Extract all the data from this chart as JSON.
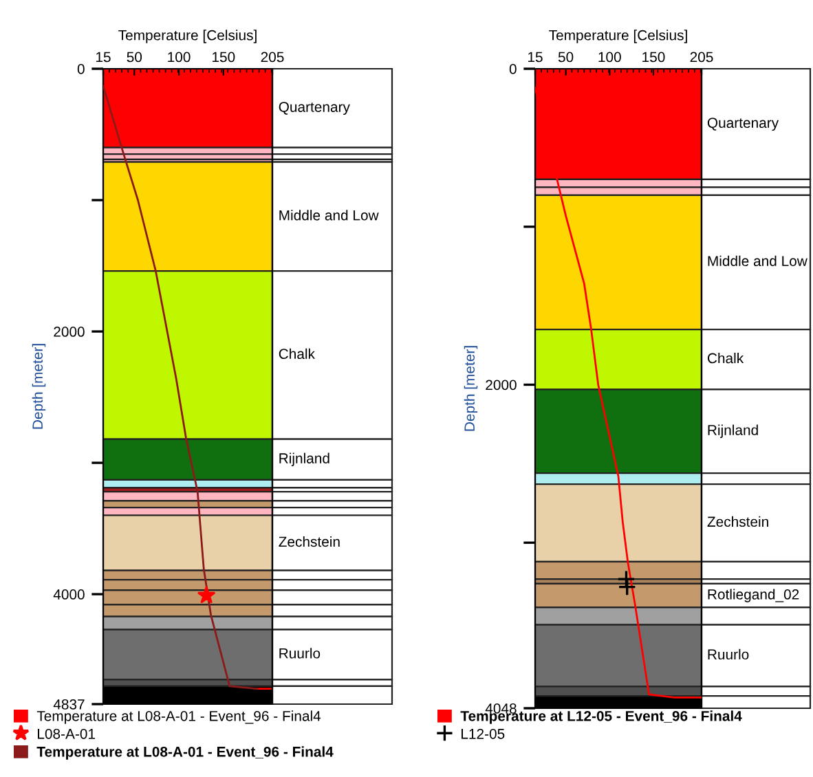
{
  "chart_data": [
    {
      "type": "line",
      "xlabel": "Temperature [Celsius]",
      "ylabel": "Depth [meter]",
      "xlim": [
        15,
        205
      ],
      "xticks": [
        15,
        50,
        100,
        150,
        205
      ],
      "ylim": [
        4837,
        0
      ],
      "yticks": [
        0,
        2000,
        4000,
        4837
      ],
      "legend": "bottom",
      "grid": false,
      "series": [
        {
          "name": "Temperature at L08-A-01 - Event_96 - Final4",
          "color": "#ff0000",
          "x": [
            188,
            203
          ],
          "values": [
            4720,
            4720
          ]
        },
        {
          "name": "L08-A-01",
          "color": "#ff0000",
          "type": "scatter",
          "marker": "star",
          "x": [
            131
          ],
          "values": [
            4010
          ]
        },
        {
          "name": "Temperature at L08-A-01 - Event_96 - Final4",
          "color": "#8b1a1a",
          "x": [
            15,
            38,
            54,
            74,
            97,
            108,
            121,
            128,
            136,
            157,
            188
          ],
          "values": [
            130,
            650,
            1000,
            1540,
            2360,
            2810,
            3220,
            3810,
            4160,
            4700,
            4720
          ]
        }
      ],
      "bands": [
        {
          "axis": "y",
          "from": 0,
          "to": 600,
          "color": "#ff0000",
          "label": "Quartenary"
        },
        {
          "axis": "y",
          "from": 600,
          "to": 650,
          "color": "#ffb6c1"
        },
        {
          "axis": "y",
          "from": 650,
          "to": 690,
          "color": "#ffb6c1"
        },
        {
          "axis": "y",
          "from": 690,
          "to": 710,
          "color": "#ffb6c1"
        },
        {
          "axis": "y",
          "from": 710,
          "to": 1540,
          "color": "#ffd700",
          "label": "Middle and Low"
        },
        {
          "axis": "y",
          "from": 1540,
          "to": 2820,
          "color": "#bff700",
          "label": "Chalk"
        },
        {
          "axis": "y",
          "from": 2820,
          "to": 3130,
          "color": "#107010",
          "label": "Rijnland"
        },
        {
          "axis": "y",
          "from": 3130,
          "to": 3190,
          "color": "#aeeef0"
        },
        {
          "axis": "y",
          "from": 3190,
          "to": 3220,
          "color": "#a01c1c"
        },
        {
          "axis": "y",
          "from": 3220,
          "to": 3290,
          "color": "#ffb6c1"
        },
        {
          "axis": "y",
          "from": 3290,
          "to": 3340,
          "color": "#c49a6c"
        },
        {
          "axis": "y",
          "from": 3340,
          "to": 3400,
          "color": "#ffb6c1"
        },
        {
          "axis": "y",
          "from": 3400,
          "to": 3820,
          "color": "#e8d0a8",
          "label": "Zechstein"
        },
        {
          "axis": "y",
          "from": 3820,
          "to": 3890,
          "color": "#c49a6c"
        },
        {
          "axis": "y",
          "from": 3890,
          "to": 3970,
          "color": "#c49a6c"
        },
        {
          "axis": "y",
          "from": 3970,
          "to": 4080,
          "color": "#c49a6c"
        },
        {
          "axis": "y",
          "from": 4080,
          "to": 4170,
          "color": "#c49a6c"
        },
        {
          "axis": "y",
          "from": 4170,
          "to": 4270,
          "color": "#a0a0a0"
        },
        {
          "axis": "y",
          "from": 4270,
          "to": 4650,
          "color": "#6e6e6e",
          "label": "Ruurlo"
        },
        {
          "axis": "y",
          "from": 4650,
          "to": 4700,
          "color": "#505050"
        },
        {
          "axis": "y",
          "from": 4700,
          "to": 4837,
          "color": "#000000"
        }
      ]
    },
    {
      "type": "line",
      "xlabel": "Temperature [Celsius]",
      "ylabel": "Depth [meter]",
      "xlim": [
        15,
        205
      ],
      "xticks": [
        15,
        50,
        100,
        150,
        205
      ],
      "ylim": [
        4048,
        0
      ],
      "yticks": [
        0,
        2000,
        4048
      ],
      "legend": "bottom",
      "grid": false,
      "series": [
        {
          "name": "Temperature at L12-05 - Event_96 - Final4",
          "color": "#ff0000",
          "x": [
            15,
            40,
            50,
            71,
            79,
            87,
            110,
            115,
            121,
            129,
            145,
            174,
            205
          ],
          "values": [
            120,
            700,
            930,
            1360,
            1650,
            2000,
            2580,
            2870,
            3130,
            3390,
            3960,
            3980,
            3980
          ]
        },
        {
          "name": "L12-05",
          "color": "#000000",
          "type": "scatter",
          "marker": "cross",
          "x": [
            119,
            120
          ],
          "values": [
            3230,
            3280
          ]
        }
      ],
      "bands": [
        {
          "axis": "y",
          "from": 0,
          "to": 700,
          "color": "#ff0000",
          "label": "Quartenary"
        },
        {
          "axis": "y",
          "from": 700,
          "to": 750,
          "color": "#ffb6c1"
        },
        {
          "axis": "y",
          "from": 750,
          "to": 800,
          "color": "#ffb6c1"
        },
        {
          "axis": "y",
          "from": 800,
          "to": 1650,
          "color": "#ffd700",
          "label": "Middle and Low"
        },
        {
          "axis": "y",
          "from": 1650,
          "to": 2030,
          "color": "#bff700",
          "label": "Chalk"
        },
        {
          "axis": "y",
          "from": 2030,
          "to": 2560,
          "color": "#107010",
          "label": "Rijnland"
        },
        {
          "axis": "y",
          "from": 2560,
          "to": 2630,
          "color": "#aeeef0"
        },
        {
          "axis": "y",
          "from": 2630,
          "to": 3120,
          "color": "#e8d0a8",
          "label": "Zechstein"
        },
        {
          "axis": "y",
          "from": 3120,
          "to": 3230,
          "color": "#c49a6c"
        },
        {
          "axis": "y",
          "from": 3230,
          "to": 3260,
          "color": "#a8825a"
        },
        {
          "axis": "y",
          "from": 3260,
          "to": 3410,
          "color": "#c49a6c",
          "label": "Rotliegand_02"
        },
        {
          "axis": "y",
          "from": 3410,
          "to": 3520,
          "color": "#a0a0a0"
        },
        {
          "axis": "y",
          "from": 3520,
          "to": 3910,
          "color": "#6e6e6e",
          "label": "Ruurlo"
        },
        {
          "axis": "y",
          "from": 3910,
          "to": 3970,
          "color": "#505050"
        },
        {
          "axis": "y",
          "from": 3970,
          "to": 4048,
          "color": "#000000"
        }
      ]
    }
  ]
}
